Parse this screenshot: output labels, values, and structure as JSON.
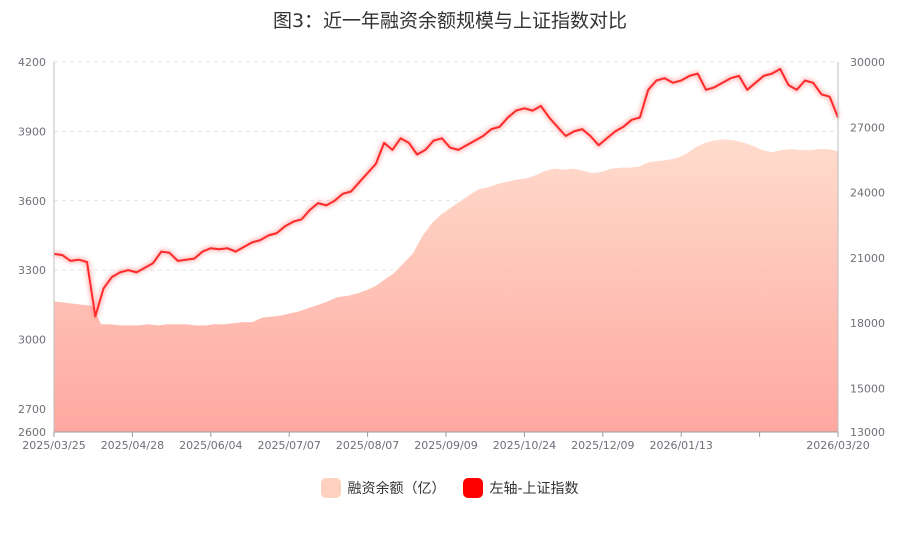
{
  "chart_data": {
    "type": "line",
    "title": "图3：近一年融资余额规模与上证指数对比",
    "x_ticks": [
      "2025/03/25",
      "2025/04/28",
      "2025/06/04",
      "2025/07/07",
      "2025/08/07",
      "2025/09/09",
      "2025/10/24",
      "2025/12/09",
      "2026/01/13",
      "",
      "2026/03/20"
    ],
    "left_axis": {
      "min": 2600,
      "max": 4200,
      "ticks": [
        2600,
        2700,
        3000,
        3300,
        3600,
        3900,
        4200
      ]
    },
    "right_axis": {
      "min": 13000,
      "max": 30000,
      "ticks": [
        13000,
        15000,
        18000,
        21000,
        24000,
        27000,
        30000
      ]
    },
    "grid": "horizontal dashed",
    "legend_position": "bottom",
    "series": [
      {
        "name": "融资余额（亿）",
        "type": "area",
        "axis": "right",
        "color": "#ffd1c1",
        "values": [
          19000,
          18950,
          18900,
          18850,
          18800,
          17950,
          17950,
          17900,
          17900,
          17900,
          17950,
          17900,
          17950,
          17950,
          17950,
          17900,
          17900,
          17950,
          17950,
          18000,
          18050,
          18050,
          18250,
          18300,
          18350,
          18450,
          18550,
          18700,
          18850,
          19000,
          19200,
          19250,
          19350,
          19500,
          19700,
          20000,
          20300,
          20750,
          21200,
          22000,
          22600,
          23000,
          23300,
          23600,
          23900,
          24150,
          24250,
          24400,
          24500,
          24600,
          24650,
          24800,
          25000,
          25100,
          25050,
          25100,
          25000,
          24900,
          24950,
          25100,
          25150,
          25150,
          25200,
          25400,
          25450,
          25500,
          25600,
          25800,
          26100,
          26300,
          26400,
          26450,
          26400,
          26300,
          26150,
          25950,
          25850,
          25950,
          26000,
          25950,
          25950,
          26000,
          26000,
          25900
        ]
      },
      {
        "name": "左轴-上证指数",
        "type": "line",
        "axis": "left",
        "color": "#ff2a2a",
        "values": [
          3370,
          3365,
          3340,
          3345,
          3335,
          3100,
          3220,
          3270,
          3290,
          3300,
          3290,
          3310,
          3330,
          3380,
          3375,
          3340,
          3345,
          3350,
          3380,
          3395,
          3390,
          3395,
          3380,
          3400,
          3420,
          3430,
          3450,
          3460,
          3490,
          3510,
          3520,
          3560,
          3590,
          3580,
          3600,
          3630,
          3640,
          3680,
          3720,
          3760,
          3850,
          3820,
          3870,
          3850,
          3800,
          3820,
          3860,
          3870,
          3830,
          3820,
          3840,
          3860,
          3880,
          3910,
          3920,
          3960,
          3990,
          4000,
          3990,
          4010,
          3960,
          3920,
          3880,
          3900,
          3910,
          3880,
          3840,
          3870,
          3900,
          3920,
          3950,
          3960,
          4080,
          4120,
          4130,
          4110,
          4120,
          4140,
          4150,
          4080,
          4090,
          4110,
          4130,
          4140,
          4080,
          4110,
          4140,
          4150,
          4170,
          4100,
          4080,
          4120,
          4110,
          4060,
          4050,
          3960
        ]
      }
    ]
  }
}
